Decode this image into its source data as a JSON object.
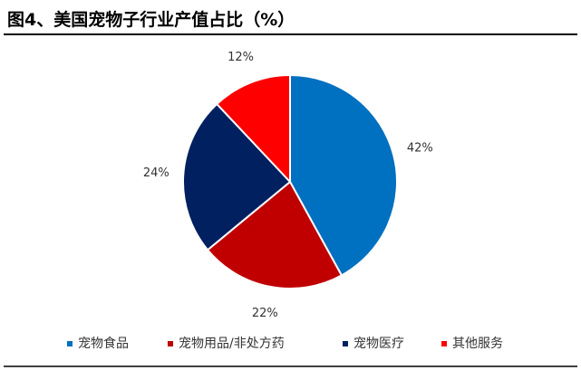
{
  "chart_data": {
    "type": "pie",
    "title": "图4、美国宠物子行业产值占比（%）",
    "categories": [
      "宠物食品",
      "宠物用品/非处方药",
      "宠物医疗",
      "其他服务"
    ],
    "values": [
      42,
      22,
      24,
      12
    ],
    "value_labels": [
      "42%",
      "22%",
      "24%",
      "12%"
    ],
    "colors": [
      "#0070c0",
      "#c00000",
      "#002060",
      "#ff0000"
    ],
    "legend": "bottom"
  }
}
